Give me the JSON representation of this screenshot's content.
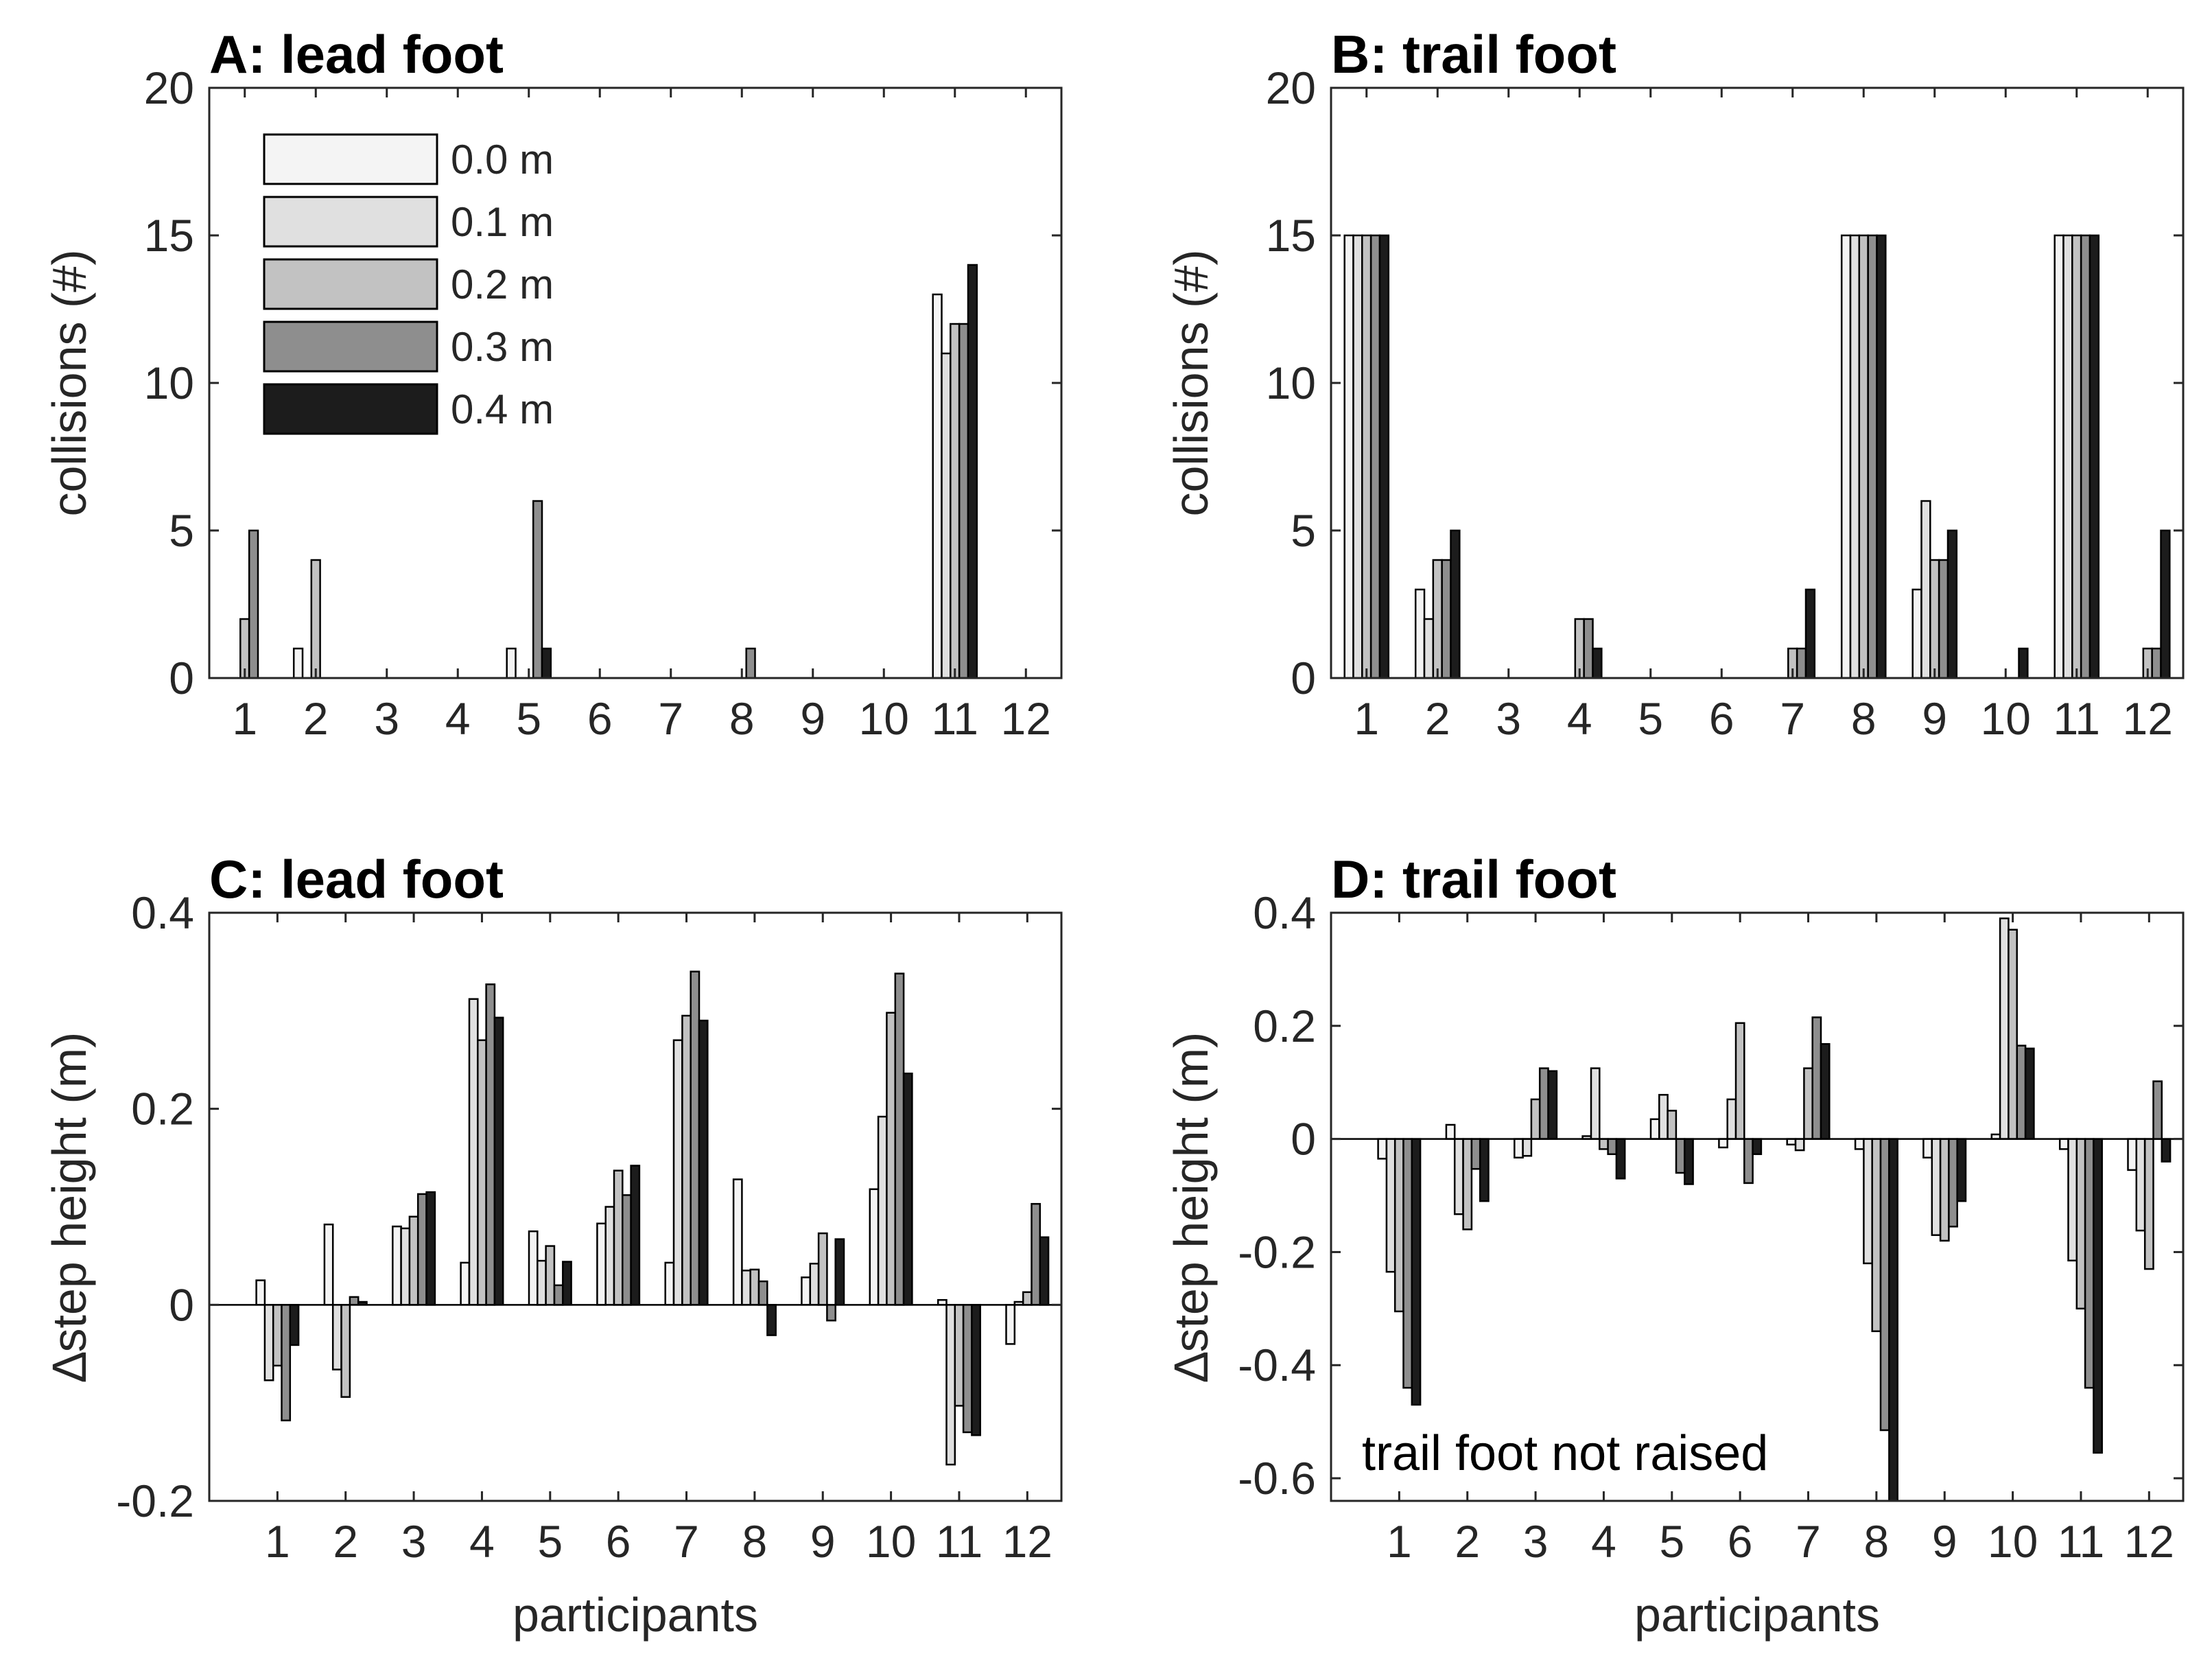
{
  "colors": [
    "#f4f4f4",
    "#e0e0e0",
    "#c2c2c2",
    "#8e8e8e",
    "#1c1c1c"
  ],
  "chart_data": [
    {
      "type": "bar",
      "title": "A: lead foot",
      "ylabel": "collisions (#)",
      "xlabel": "",
      "ylim": [
        0,
        20
      ],
      "yticks": [
        0,
        5,
        10,
        15,
        20
      ],
      "ytick_labels": [
        "0",
        "5",
        "10",
        "15",
        "20"
      ],
      "categories": [
        "1",
        "2",
        "3",
        "4",
        "5",
        "6",
        "7",
        "8",
        "9",
        "10",
        "11",
        "12"
      ],
      "legend": {
        "position": "top-left",
        "entries": [
          "0.0 m",
          "0.1 m",
          "0.2 m",
          "0.3 m",
          "0.4 m"
        ]
      },
      "series": [
        {
          "name": "0.0 m",
          "values": [
            0,
            1,
            0,
            0,
            1,
            0,
            0,
            0,
            0,
            0,
            13,
            0
          ]
        },
        {
          "name": "0.1 m",
          "values": [
            0,
            0,
            0,
            0,
            0,
            0,
            0,
            0,
            0,
            0,
            11,
            0
          ]
        },
        {
          "name": "0.2 m",
          "values": [
            2,
            4,
            0,
            0,
            0,
            0,
            0,
            0,
            0,
            0,
            12,
            0
          ]
        },
        {
          "name": "0.3 m",
          "values": [
            5,
            0,
            0,
            0,
            6,
            0,
            0,
            1,
            0,
            0,
            12,
            0
          ]
        },
        {
          "name": "0.4 m",
          "values": [
            0,
            0,
            0,
            0,
            1,
            0,
            0,
            0,
            0,
            0,
            14,
            0
          ]
        }
      ]
    },
    {
      "type": "bar",
      "title": "B: trail foot",
      "ylabel": "collisions (#)",
      "xlabel": "",
      "ylim": [
        0,
        20
      ],
      "yticks": [
        0,
        5,
        10,
        15,
        20
      ],
      "ytick_labels": [
        "0",
        "5",
        "10",
        "15",
        "20"
      ],
      "categories": [
        "1",
        "2",
        "3",
        "4",
        "5",
        "6",
        "7",
        "8",
        "9",
        "10",
        "11",
        "12"
      ],
      "series": [
        {
          "name": "0.0 m",
          "values": [
            15,
            3,
            0,
            0,
            0,
            0,
            0,
            15,
            3,
            0,
            15,
            0
          ]
        },
        {
          "name": "0.1 m",
          "values": [
            15,
            2,
            0,
            0,
            0,
            0,
            0,
            15,
            6,
            0,
            15,
            0
          ]
        },
        {
          "name": "0.2 m",
          "values": [
            15,
            4,
            0,
            2,
            0,
            0,
            1,
            15,
            4,
            0,
            15,
            1
          ]
        },
        {
          "name": "0.3 m",
          "values": [
            15,
            4,
            0,
            2,
            0,
            0,
            1,
            15,
            4,
            0,
            15,
            1
          ]
        },
        {
          "name": "0.4 m",
          "values": [
            15,
            5,
            0,
            1,
            0,
            0,
            3,
            15,
            5,
            1,
            15,
            5
          ]
        }
      ]
    },
    {
      "type": "bar",
      "title": "C: lead foot",
      "ylabel": "∆step height (m)",
      "xlabel": "participants",
      "ylim": [
        -0.2,
        0.4
      ],
      "yticks": [
        -0.2,
        0,
        0.2,
        0.4
      ],
      "ytick_labels": [
        "-0.2",
        "0",
        "0.2",
        "0.4"
      ],
      "categories": [
        "1",
        "2",
        "3",
        "4",
        "5",
        "6",
        "7",
        "8",
        "9",
        "10",
        "11",
        "12"
      ],
      "series": [
        {
          "name": "0.0 m",
          "values": [
            0.025,
            0.082,
            0.08,
            0.043,
            0.075,
            0.083,
            0.043,
            0.128,
            0.028,
            0.118,
            0.005,
            -0.04
          ]
        },
        {
          "name": "0.1 m",
          "values": [
            -0.077,
            -0.066,
            0.078,
            0.312,
            0.045,
            0.1,
            0.27,
            0.035,
            0.042,
            0.192,
            -0.163,
            0.003
          ]
        },
        {
          "name": "0.2 m",
          "values": [
            -0.062,
            -0.094,
            0.09,
            0.27,
            0.06,
            0.137,
            0.295,
            0.036,
            0.073,
            0.298,
            -0.103,
            0.013
          ]
        },
        {
          "name": "0.3 m",
          "values": [
            -0.118,
            0.008,
            0.113,
            0.327,
            0.02,
            0.112,
            0.34,
            0.024,
            -0.016,
            0.338,
            -0.13,
            0.103
          ]
        },
        {
          "name": "0.4 m",
          "values": [
            -0.041,
            0.003,
            0.115,
            0.293,
            0.044,
            0.142,
            0.29,
            -0.031,
            0.067,
            0.236,
            -0.133,
            0.069
          ]
        }
      ]
    },
    {
      "type": "bar",
      "title": "D: trail foot",
      "ylabel": "∆step height (m)",
      "xlabel": "participants",
      "ylim": [
        -0.64,
        0.4
      ],
      "yticks": [
        -0.6,
        -0.4,
        -0.2,
        0,
        0.2,
        0.4
      ],
      "ytick_labels": [
        "-0.6",
        "-0.4",
        "-0.2",
        "0",
        "0.2",
        "0.4"
      ],
      "annotation": "trail foot not raised",
      "categories": [
        "1",
        "2",
        "3",
        "4",
        "5",
        "6",
        "7",
        "8",
        "9",
        "10",
        "11",
        "12"
      ],
      "series": [
        {
          "name": "0.0 m",
          "values": [
            -0.035,
            0.025,
            -0.033,
            0.005,
            0.035,
            -0.015,
            -0.01,
            -0.018,
            -0.033,
            0.008,
            -0.018,
            -0.055
          ]
        },
        {
          "name": "0.1 m",
          "values": [
            -0.235,
            -0.133,
            -0.03,
            0.125,
            0.078,
            0.07,
            -0.02,
            -0.22,
            -0.17,
            0.39,
            -0.215,
            -0.162
          ]
        },
        {
          "name": "0.2 m",
          "values": [
            -0.305,
            -0.16,
            0.07,
            -0.018,
            0.05,
            0.205,
            0.125,
            -0.34,
            -0.18,
            0.37,
            -0.3,
            -0.23
          ]
        },
        {
          "name": "0.3 m",
          "values": [
            -0.44,
            -0.053,
            0.125,
            -0.027,
            -0.06,
            -0.078,
            0.215,
            -0.515,
            -0.155,
            0.165,
            -0.44,
            0.102
          ]
        },
        {
          "name": "0.4 m",
          "values": [
            -0.47,
            -0.11,
            0.12,
            -0.07,
            -0.08,
            -0.027,
            0.168,
            -0.64,
            -0.11,
            0.16,
            -0.555,
            -0.04
          ]
        }
      ]
    }
  ]
}
